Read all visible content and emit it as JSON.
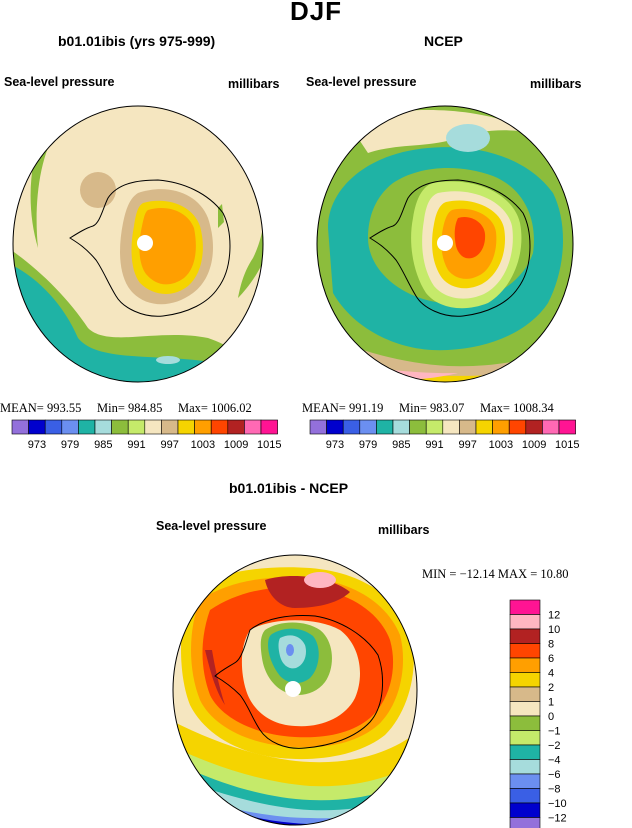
{
  "page": {
    "title": "DJF"
  },
  "panels": [
    {
      "id": "model",
      "heading": "b01.01ibis (yrs 975-999)",
      "field_label": "Sea-level pressure",
      "units": "millibars",
      "stats": {
        "mean_label": "MEAN=",
        "mean": "993.55",
        "min_label": "Min=",
        "min": "984.85",
        "max_label": "Max=",
        "max": "1006.02"
      }
    },
    {
      "id": "ncep",
      "heading": "NCEP",
      "field_label": "Sea-level pressure",
      "units": "millibars",
      "stats": {
        "mean_label": "MEAN=",
        "mean": "991.19",
        "min_label": "Min=",
        "min": "983.07",
        "max_label": "Max=",
        "max": "1008.34"
      }
    },
    {
      "id": "diff",
      "heading": "b01.01ibis - NCEP",
      "field_label": "Sea-level pressure",
      "units": "millibars",
      "stats": {
        "min_label": "MIN =",
        "min": "−12.14",
        "max_label": "MAX =",
        "max": "10.80"
      }
    }
  ],
  "abs_colorbar": {
    "colors": [
      "#9370db",
      "#0000cd",
      "#3a5fe5",
      "#6b8ff0",
      "#1fb3a5",
      "#a6dcdc",
      "#8cbd3c",
      "#c5ea6a",
      "#f5e6c0",
      "#d7b98a",
      "#f5d400",
      "#ff9f00",
      "#ff4500",
      "#b22222",
      "#ff69b4",
      "#ff1493"
    ],
    "tick_labels": [
      "973",
      "979",
      "985",
      "991",
      "997",
      "1003",
      "1009",
      "1015"
    ]
  },
  "diff_colorbar": {
    "colors_top_to_bottom": [
      "#ff1493",
      "#ffb6c1",
      "#b22222",
      "#ff4500",
      "#ff9f00",
      "#f5d400",
      "#d7b98a",
      "#f5e6c0",
      "#8cbd3c",
      "#c5ea6a",
      "#1fb3a5",
      "#a6dcdc",
      "#6b8ff0",
      "#3a5fe5",
      "#0000cd",
      "#9370db"
    ],
    "tick_labels": [
      "12",
      "10",
      "8",
      "6",
      "4",
      "2",
      "1",
      "0",
      "−1",
      "−2",
      "−4",
      "−6",
      "−8",
      "−10",
      "−12"
    ]
  },
  "map_colors": {
    "tan_light": "#f5e6c0",
    "tan_dark": "#d7b98a",
    "green_dark": "#8cbd3c",
    "green_light": "#c5ea6a",
    "teal": "#1fb3a5",
    "light_blue": "#a6dcdc",
    "yellow": "#f5d400",
    "orange": "#ff9f00",
    "red_orange": "#ff4500",
    "dark_red": "#b22222",
    "pink_light": "#ffb6c1",
    "blue_mid": "#6b8ff0",
    "blue": "#3a5fe5",
    "navy": "#0000cd",
    "purple": "#9370db"
  }
}
